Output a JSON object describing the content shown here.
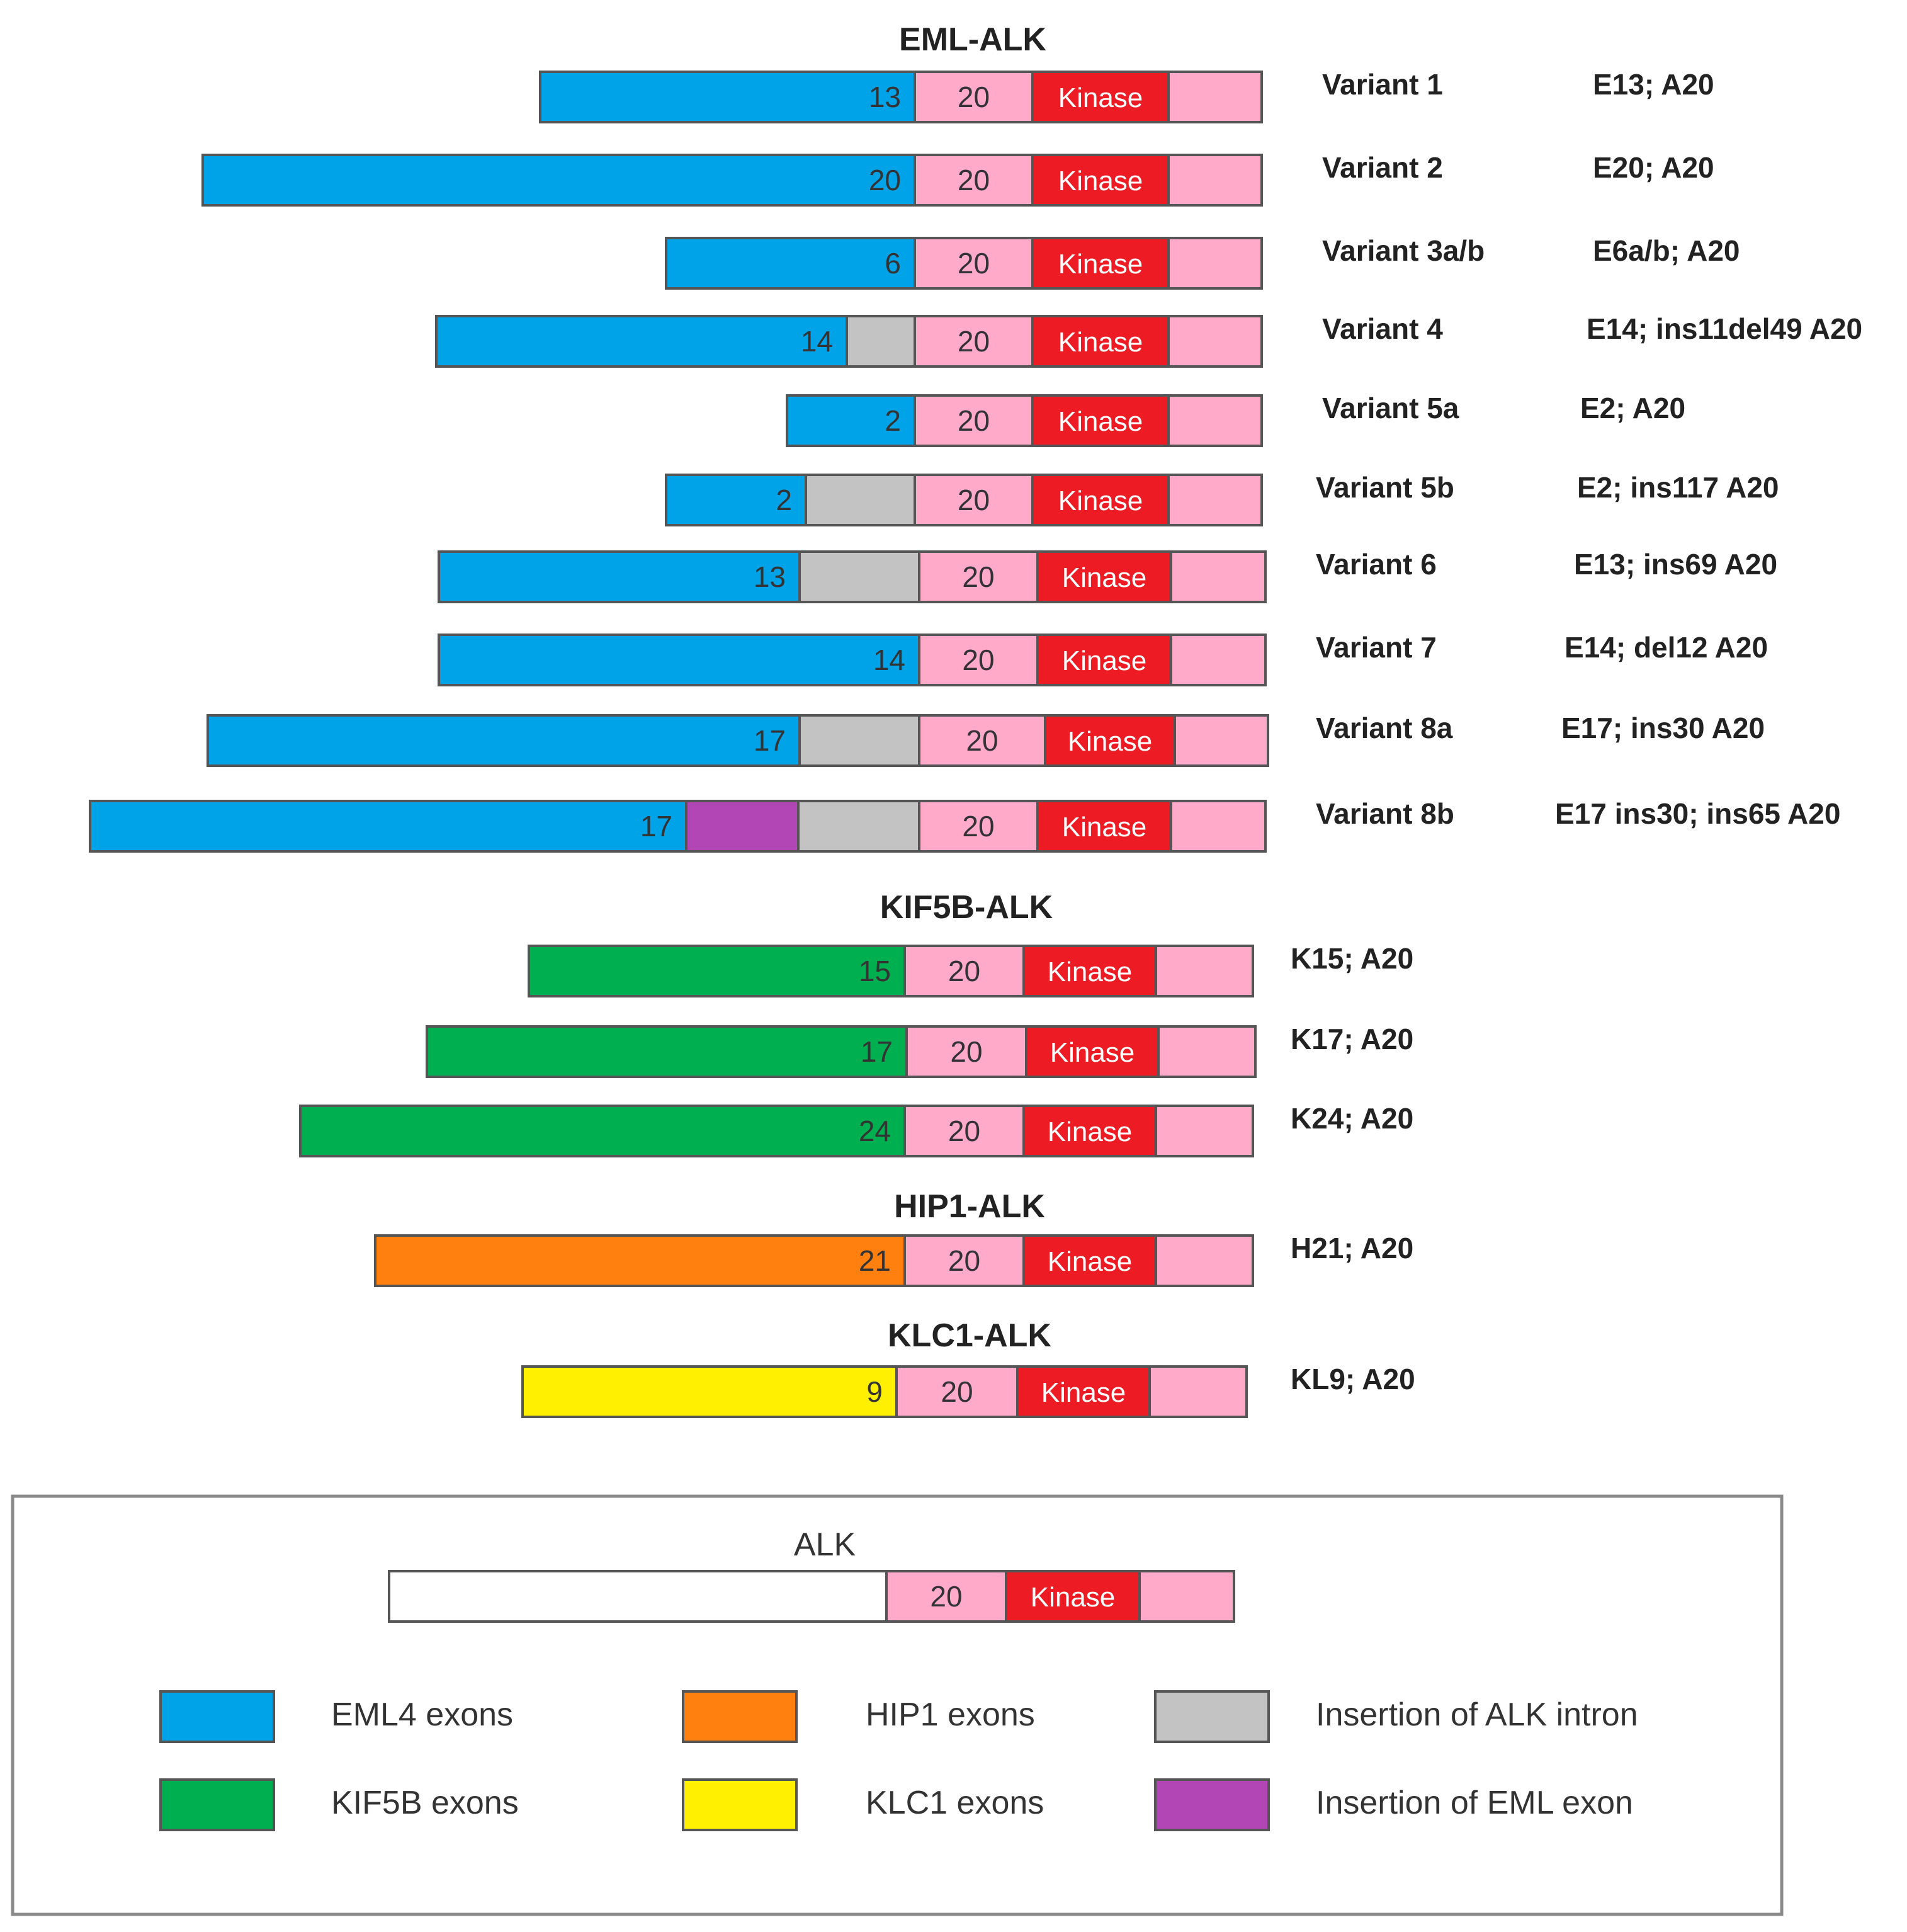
{
  "colors": {
    "EML4": "#00a2e8",
    "KIF5B": "#00b050",
    "HIP1": "#ff7f0f",
    "KLC1": "#ffef00",
    "intron": "#c3c3c3",
    "emlExon": "#b246b4",
    "alk20": "#ffaac9",
    "kinase": "#ed1c24",
    "tail": "#ffaac9",
    "alkBlank": "#ffffff"
  },
  "labels": {
    "exon20": "20",
    "kinase": "Kinase"
  },
  "groups": [
    {
      "title": "EML-ALK",
      "rows": [
        {
          "segments": [
            {
              "type": "EML4",
              "label": "13"
            }
          ],
          "name": "Variant 1",
          "code": "E13; A20"
        },
        {
          "segments": [
            {
              "type": "EML4",
              "label": "20"
            }
          ],
          "name": "Variant 2",
          "code": "E20; A20"
        },
        {
          "segments": [
            {
              "type": "EML4",
              "label": "6"
            }
          ],
          "name": "Variant 3a/b",
          "code": "E6a/b; A20"
        },
        {
          "segments": [
            {
              "type": "EML4",
              "label": "14"
            },
            {
              "type": "intron",
              "label": ""
            }
          ],
          "name": "Variant 4",
          "code": "E14; ins11del49 A20"
        },
        {
          "segments": [
            {
              "type": "EML4",
              "label": "2"
            }
          ],
          "name": "Variant 5a",
          "code": "E2; A20"
        },
        {
          "segments": [
            {
              "type": "EML4",
              "label": "2"
            },
            {
              "type": "intron",
              "label": ""
            }
          ],
          "name": "Variant 5b",
          "code": "E2; ins117 A20"
        },
        {
          "segments": [
            {
              "type": "EML4",
              "label": "13"
            },
            {
              "type": "intron",
              "label": ""
            }
          ],
          "name": "Variant 6",
          "code": "E13; ins69 A20"
        },
        {
          "segments": [
            {
              "type": "EML4",
              "label": "14"
            }
          ],
          "name": "Variant 7",
          "code": "E14; del12 A20"
        },
        {
          "segments": [
            {
              "type": "EML4",
              "label": "17"
            },
            {
              "type": "intron",
              "label": ""
            }
          ],
          "name": "Variant 8a",
          "code": "E17; ins30 A20"
        },
        {
          "segments": [
            {
              "type": "EML4",
              "label": "17"
            },
            {
              "type": "emlExon",
              "label": ""
            },
            {
              "type": "intron",
              "label": ""
            }
          ],
          "name": "Variant 8b",
          "code": "E17 ins30; ins65 A20"
        }
      ]
    },
    {
      "title": "KIF5B-ALK",
      "rows": [
        {
          "segments": [
            {
              "type": "KIF5B",
              "label": "15"
            }
          ],
          "name": "",
          "code": "K15; A20"
        },
        {
          "segments": [
            {
              "type": "KIF5B",
              "label": "17"
            }
          ],
          "name": "",
          "code": "K17; A20"
        },
        {
          "segments": [
            {
              "type": "KIF5B",
              "label": "24"
            }
          ],
          "name": "",
          "code": "K24; A20"
        }
      ]
    },
    {
      "title": "HIP1-ALK",
      "rows": [
        {
          "segments": [
            {
              "type": "HIP1",
              "label": "21"
            }
          ],
          "name": "",
          "code": "H21; A20"
        }
      ]
    },
    {
      "title": "KLC1-ALK",
      "rows": [
        {
          "segments": [
            {
              "type": "KLC1",
              "label": "9"
            }
          ],
          "name": "",
          "code": "KL9; A20"
        }
      ]
    }
  ],
  "legend": {
    "alk_title": "ALK",
    "items": [
      {
        "type": "EML4",
        "label": "EML4 exons"
      },
      {
        "type": "HIP1",
        "label": "HIP1 exons"
      },
      {
        "type": "intron",
        "label": "Insertion of ALK intron"
      },
      {
        "type": "KIF5B",
        "label": "KIF5B exons"
      },
      {
        "type": "KLC1",
        "label": "KLC1 exons"
      },
      {
        "type": "emlExon",
        "label": "Insertion of EML exon"
      }
    ]
  }
}
